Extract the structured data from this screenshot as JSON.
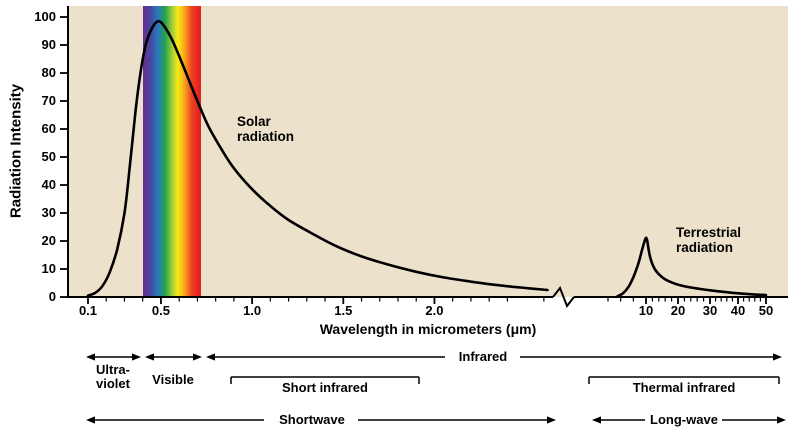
{
  "colors": {
    "background": "#ffffff",
    "plot_background": "#ece1cb",
    "curve": "#000000",
    "text": "#000000"
  },
  "chart_data": {
    "type": "line",
    "xlabel": "Wavelength in micrometers (μm)",
    "ylabel": "Radiation Intensity",
    "ylim": [
      0,
      100
    ],
    "y_ticks": [
      0,
      10,
      20,
      30,
      40,
      50,
      60,
      70,
      80,
      90,
      100
    ],
    "x_ticks_left_um": [
      "0.1",
      "0.5",
      "1.0",
      "1.5",
      "2.0"
    ],
    "x_ticks_right_um": [
      "10",
      "20",
      "30",
      "40",
      "50"
    ],
    "axis_break": true,
    "axis_break_between_um": [
      2.65,
      4
    ],
    "visible_band_um": [
      0.4,
      0.7
    ],
    "spectrum_gradient": [
      [
        "#6a2d91",
        0
      ],
      [
        "#45479f",
        13
      ],
      [
        "#2a7abf",
        26
      ],
      [
        "#23a14b",
        38
      ],
      [
        "#9fcb3b",
        50
      ],
      [
        "#f7ec13",
        60
      ],
      [
        "#f7a31b",
        72
      ],
      [
        "#ee4023",
        84
      ],
      [
        "#e21d1d",
        100
      ]
    ],
    "series": [
      {
        "name": "Solar radiation",
        "axis_segment": "left",
        "peak_um": 0.5,
        "peak_intensity": 98.5,
        "points_um_intensity": [
          [
            0.1,
            0.5
          ],
          [
            0.14,
            1.5
          ],
          [
            0.18,
            4
          ],
          [
            0.22,
            9
          ],
          [
            0.26,
            17
          ],
          [
            0.3,
            30
          ],
          [
            0.33,
            47
          ],
          [
            0.36,
            66
          ],
          [
            0.39,
            81
          ],
          [
            0.42,
            91
          ],
          [
            0.46,
            97
          ],
          [
            0.49,
            98.5
          ],
          [
            0.52,
            96.5
          ],
          [
            0.56,
            92
          ],
          [
            0.6,
            86
          ],
          [
            0.65,
            78
          ],
          [
            0.7,
            70
          ],
          [
            0.76,
            61
          ],
          [
            0.83,
            53
          ],
          [
            0.9,
            46
          ],
          [
            1.0,
            38.5
          ],
          [
            1.1,
            32.5
          ],
          [
            1.2,
            27.5
          ],
          [
            1.32,
            23
          ],
          [
            1.45,
            18.5
          ],
          [
            1.6,
            14.5
          ],
          [
            1.75,
            11.5
          ],
          [
            1.9,
            9
          ],
          [
            2.05,
            7
          ],
          [
            2.2,
            5.5
          ],
          [
            2.35,
            4.2
          ],
          [
            2.5,
            3.2
          ],
          [
            2.62,
            2.5
          ]
        ]
      },
      {
        "name": "Terrestrial radiation",
        "axis_segment": "right",
        "peak_um": 10,
        "peak_intensity": 21,
        "points_um_intensity": [
          [
            5.5,
            0.3
          ],
          [
            6.3,
            1.2
          ],
          [
            7.2,
            3.5
          ],
          [
            8.0,
            7
          ],
          [
            8.8,
            12
          ],
          [
            9.4,
            17
          ],
          [
            9.9,
            20.8
          ],
          [
            10.3,
            20.5
          ],
          [
            10.8,
            17
          ],
          [
            11.4,
            13.8
          ],
          [
            12.2,
            11.2
          ],
          [
            13.2,
            9.2
          ],
          [
            14.5,
            7.6
          ],
          [
            16,
            6.3
          ],
          [
            18,
            5.2
          ],
          [
            21,
            4.1
          ],
          [
            25,
            3.2
          ],
          [
            30,
            2.4
          ],
          [
            36,
            1.7
          ],
          [
            43,
            1.1
          ],
          [
            50,
            0.7
          ]
        ]
      }
    ],
    "wavelength_bands": [
      {
        "id": "ultraviolet",
        "label": "Ultra-\nviolet"
      },
      {
        "id": "visible",
        "label": "Visible"
      },
      {
        "id": "infrared",
        "label": "Infrared"
      },
      {
        "id": "short_infrared",
        "label": "Short infrared"
      },
      {
        "id": "thermal_infrared",
        "label": "Thermal infrared"
      },
      {
        "id": "shortwave",
        "label": "Shortwave"
      },
      {
        "id": "longwave",
        "label": "Long-wave"
      }
    ]
  }
}
